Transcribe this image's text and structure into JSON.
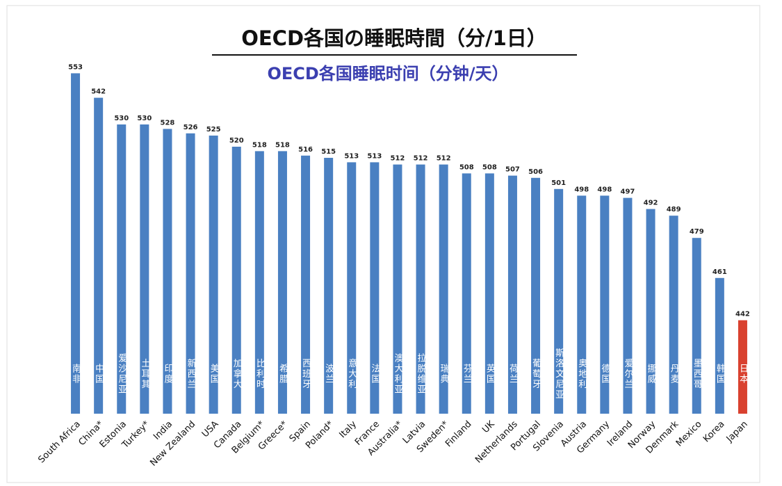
{
  "chart_data": {
    "type": "bar",
    "title": "OECD各国の睡眠時間（分/1日）",
    "subtitle": "OECD各国睡眠时间（分钟/天）",
    "categories": [
      "South Africa",
      "China*",
      "Estonia",
      "Turkey*",
      "India",
      "New Zealand",
      "USA",
      "Canada",
      "Belgium*",
      "Greece*",
      "Spain",
      "Poland*",
      "Italy",
      "France",
      "Australia*",
      "Latvia",
      "Sweden*",
      "Finland",
      "UK",
      "Netherlands",
      "Portugal",
      "Slovenia",
      "Austria",
      "Germany",
      "Ireland",
      "Norway",
      "Denmark",
      "Mexico",
      "Korea",
      "Japan"
    ],
    "category_labels_zh": [
      "南非",
      "中国",
      "爱沙尼亚",
      "土耳其",
      "印度",
      "新西兰",
      "美国",
      "加拿大",
      "比利时",
      "希腊",
      "西班牙",
      "波兰",
      "意大利",
      "法国",
      "澳大利亚",
      "拉脱维亚",
      "瑞典",
      "芬兰",
      "英国",
      "荷兰",
      "葡萄牙",
      "斯洛文尼亚",
      "奥地利",
      "德国",
      "爱尔兰",
      "挪威",
      "丹麦",
      "墨西哥",
      "韩国",
      "日本"
    ],
    "values": [
      553,
      542,
      530,
      530,
      528,
      526,
      525,
      520,
      518,
      518,
      516,
      515,
      513,
      513,
      512,
      512,
      512,
      508,
      508,
      507,
      506,
      501,
      498,
      498,
      497,
      492,
      489,
      479,
      461,
      442
    ],
    "colors": [
      "#4a80c2",
      "#4a80c2",
      "#4a80c2",
      "#4a80c2",
      "#4a80c2",
      "#4a80c2",
      "#4a80c2",
      "#4a80c2",
      "#4a80c2",
      "#4a80c2",
      "#4a80c2",
      "#4a80c2",
      "#4a80c2",
      "#4a80c2",
      "#4a80c2",
      "#4a80c2",
      "#4a80c2",
      "#4a80c2",
      "#4a80c2",
      "#4a80c2",
      "#4a80c2",
      "#4a80c2",
      "#4a80c2",
      "#4a80c2",
      "#4a80c2",
      "#4a80c2",
      "#4a80c2",
      "#4a80c2",
      "#4a80c2",
      "#d9412f"
    ],
    "ylim": [
      400,
      570
    ]
  }
}
